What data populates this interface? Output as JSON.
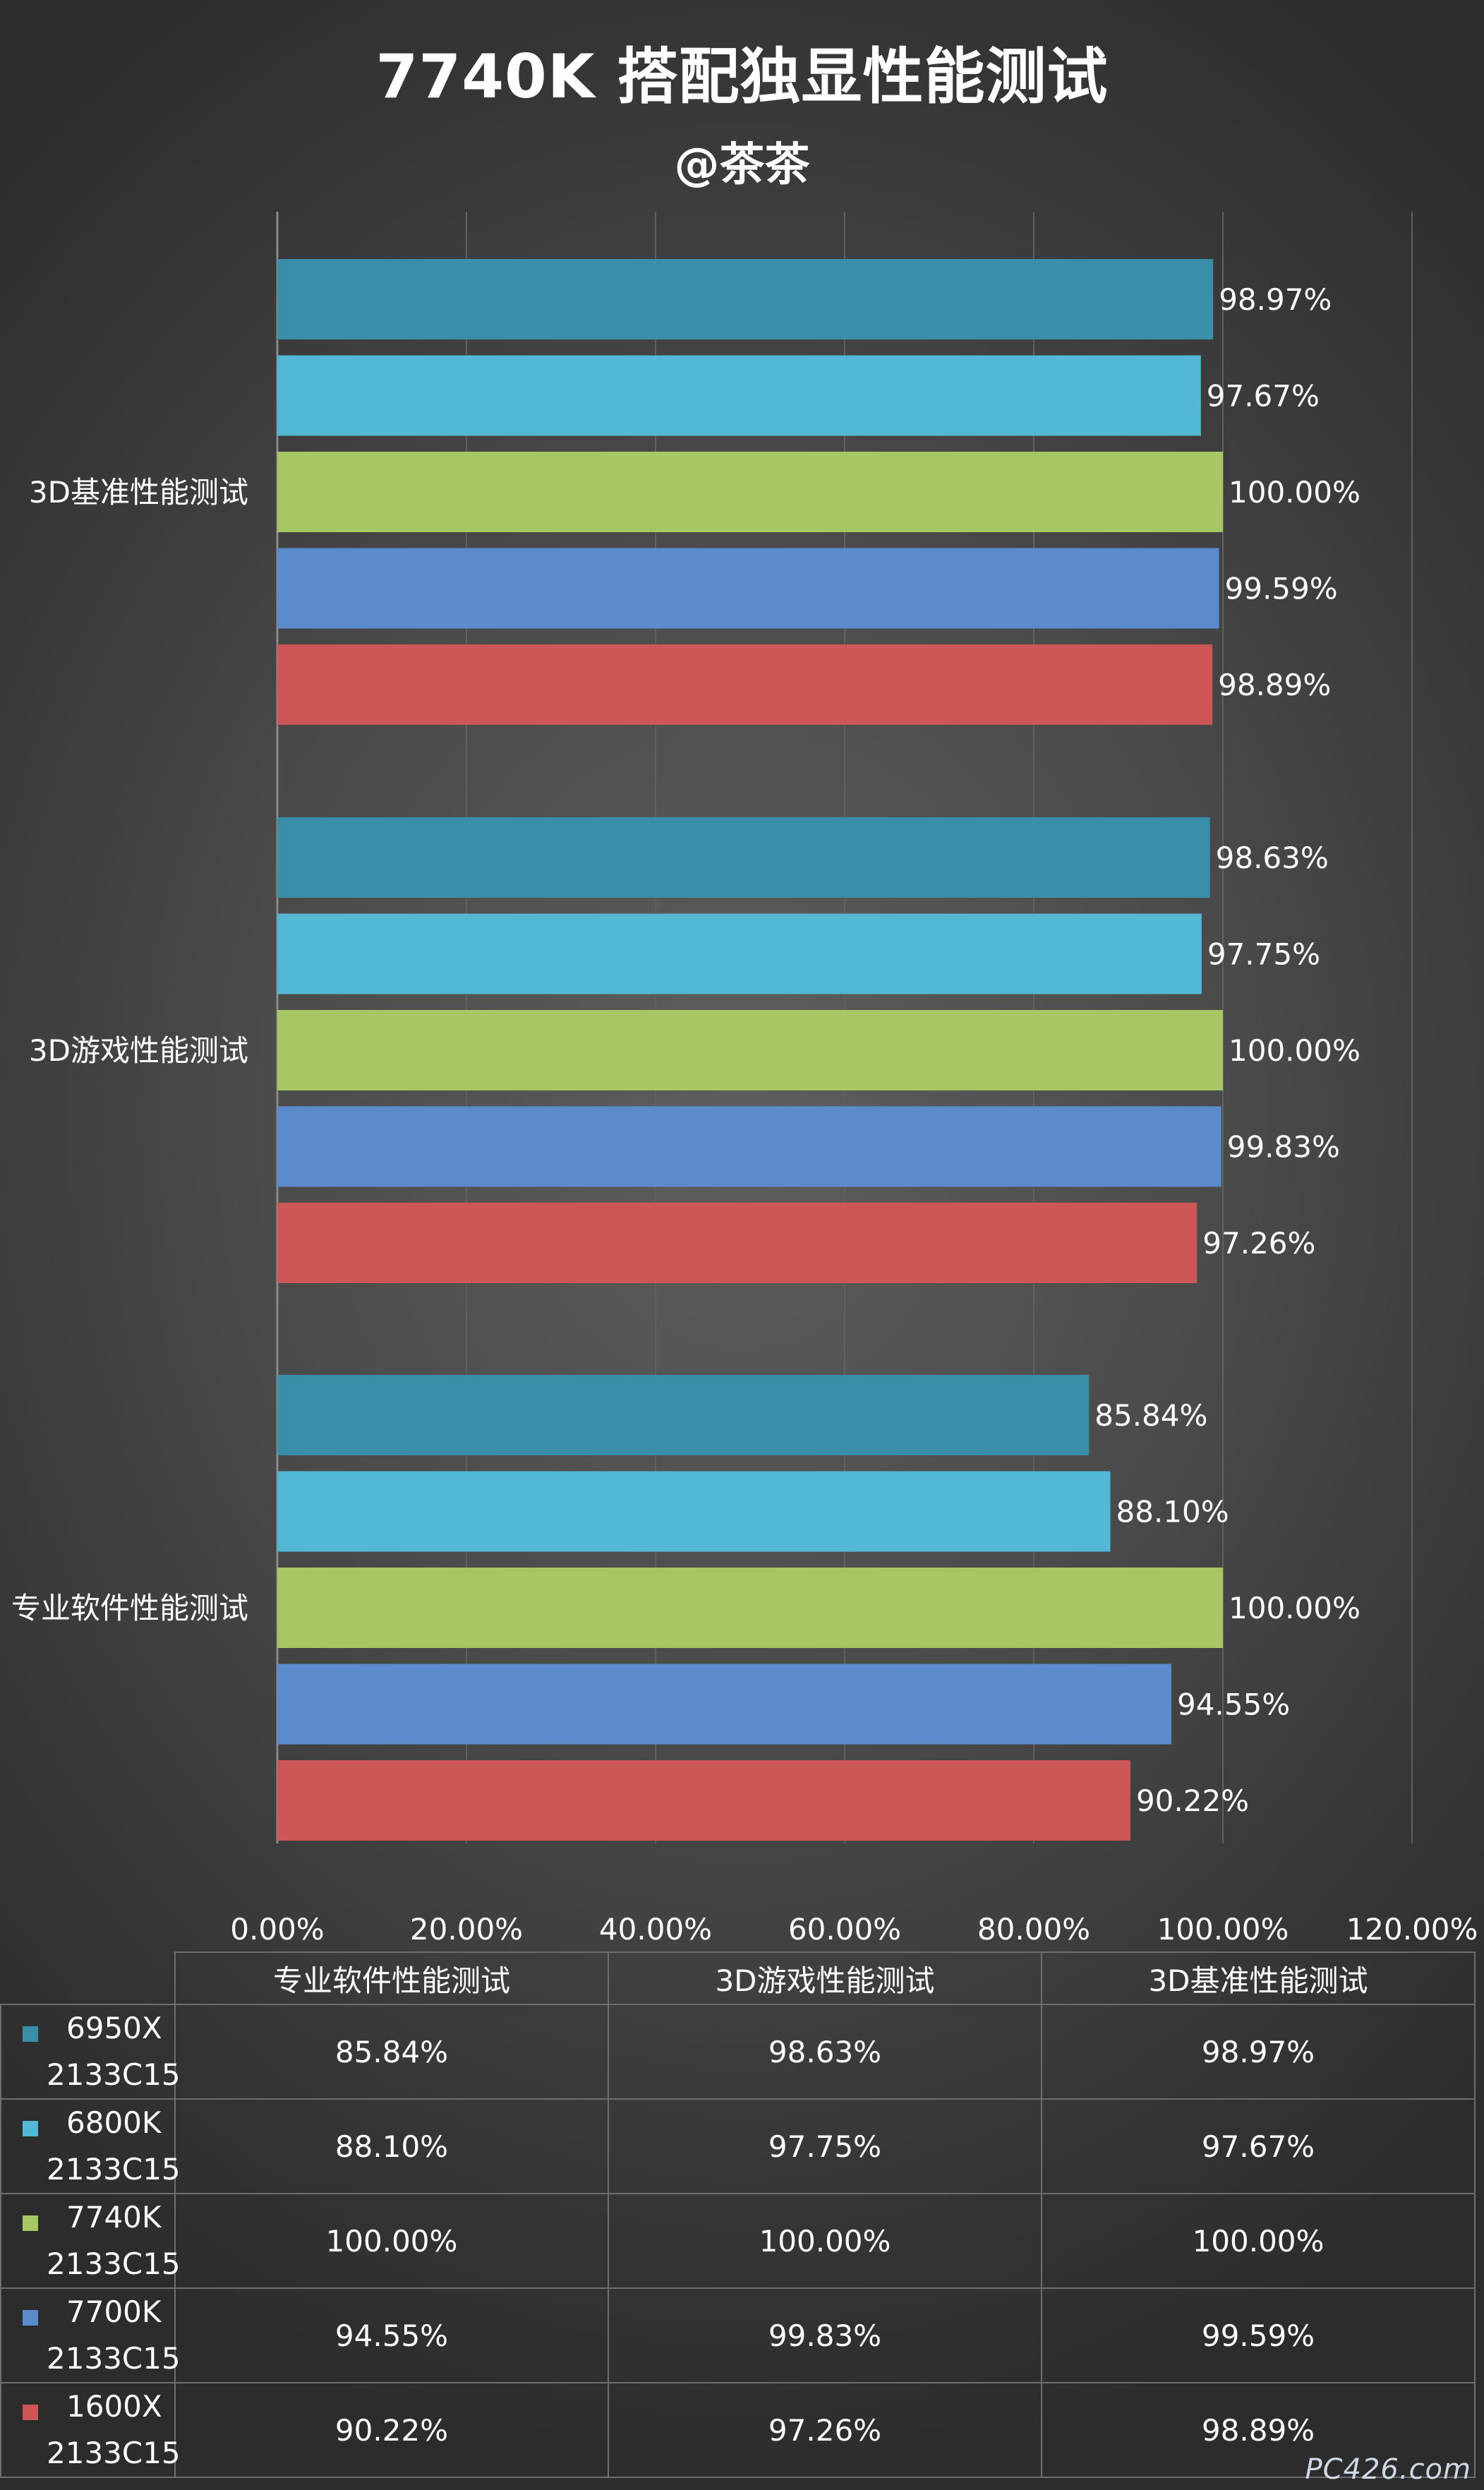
{
  "title": "7740K 搭配独显性能测试",
  "subtitle": "@茶茶",
  "watermark": "PC426.com",
  "chart_data": {
    "type": "bar",
    "orientation": "horizontal",
    "categories": [
      "3D基准性能测试",
      "3D游戏性能测试",
      "专业软件性能测试"
    ],
    "series": [
      {
        "name": "6950X 2133C15",
        "color": "#3a8ea8",
        "values": [
          98.97,
          98.63,
          85.84
        ],
        "labels": [
          "98.97%",
          "98.63%",
          "85.84%"
        ]
      },
      {
        "name": "6800K 2133C15",
        "color": "#52b8d6",
        "values": [
          97.67,
          97.75,
          88.1
        ],
        "labels": [
          "97.67%",
          "97.75%",
          "88.10%"
        ]
      },
      {
        "name": "7740K 2133C15",
        "color": "#a6c764",
        "values": [
          100.0,
          100.0,
          100.0
        ],
        "labels": [
          "100.00%",
          "100.00%",
          "100.00%"
        ]
      },
      {
        "name": "7700K 2133C15",
        "color": "#5b8bcd",
        "values": [
          99.59,
          99.83,
          94.55
        ],
        "labels": [
          "99.59%",
          "99.83%",
          "94.55%"
        ]
      },
      {
        "name": "1600X 2133C15",
        "color": "#cd5756",
        "values": [
          98.89,
          97.26,
          90.22
        ],
        "labels": [
          "98.89%",
          "97.26%",
          "90.22%"
        ]
      }
    ],
    "xlim": [
      0,
      120
    ],
    "xticks": [
      0,
      20,
      40,
      60,
      80,
      100,
      120
    ],
    "xtick_labels": [
      "0.00%",
      "20.00%",
      "40.00%",
      "60.00%",
      "80.00%",
      "100.00%",
      "120.00%"
    ],
    "grid": true,
    "legend": "data table below chart"
  },
  "table": {
    "columns": [
      "专业软件性能测试",
      "3D游戏性能测试",
      "3D基准性能测试"
    ],
    "rows": [
      {
        "name1": "6950X",
        "name2": "2133C15",
        "color": "#3a8ea8",
        "cells": [
          "85.84%",
          "98.63%",
          "98.97%"
        ]
      },
      {
        "name1": "6800K",
        "name2": "2133C15",
        "color": "#52b8d6",
        "cells": [
          "88.10%",
          "97.75%",
          "97.67%"
        ]
      },
      {
        "name1": "7740K",
        "name2": "2133C15",
        "color": "#a6c764",
        "cells": [
          "100.00%",
          "100.00%",
          "100.00%"
        ]
      },
      {
        "name1": "7700K",
        "name2": "2133C15",
        "color": "#5b8bcd",
        "cells": [
          "94.55%",
          "99.83%",
          "99.59%"
        ]
      },
      {
        "name1": "1600X",
        "name2": "2133C15",
        "color": "#cd5756",
        "cells": [
          "90.22%",
          "97.26%",
          "98.89%"
        ]
      }
    ]
  }
}
